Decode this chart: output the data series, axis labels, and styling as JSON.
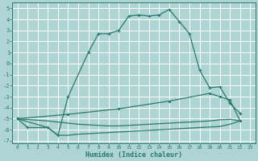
{
  "xlabel": "Humidex (Indice chaleur)",
  "bg_color": "#aed4d4",
  "grid_color": "#ffffff",
  "line_color": "#2a7a6a",
  "xlim": [
    -0.5,
    23.5
  ],
  "ylim": [
    -7.2,
    5.5
  ],
  "xticks": [
    0,
    1,
    2,
    3,
    4,
    5,
    6,
    7,
    8,
    9,
    10,
    11,
    12,
    13,
    14,
    15,
    16,
    17,
    18,
    19,
    20,
    21,
    22,
    23
  ],
  "yticks": [
    -7,
    -6,
    -5,
    -4,
    -3,
    -2,
    -1,
    0,
    1,
    2,
    3,
    4,
    5
  ],
  "curve1_x": [
    0,
    1,
    3,
    4,
    5,
    7,
    8,
    9,
    10,
    11,
    12,
    13,
    14,
    15,
    16,
    17,
    18,
    19,
    20,
    21,
    22
  ],
  "curve1_y": [
    -5.0,
    -5.8,
    -5.8,
    -6.5,
    -3.0,
    1.0,
    2.7,
    2.7,
    3.0,
    4.3,
    4.4,
    4.3,
    4.4,
    4.9,
    3.8,
    2.7,
    -0.6,
    -2.2,
    -2.1,
    -3.6,
    -4.5
  ],
  "curve2_x": [
    0,
    5,
    10,
    15,
    19,
    20,
    21,
    22
  ],
  "curve2_y": [
    -5.0,
    -4.6,
    -4.1,
    -3.4,
    -2.7,
    -3.0,
    -3.3,
    -5.2
  ],
  "curve3_x": [
    0,
    3,
    4,
    5,
    6,
    7,
    8,
    9,
    10,
    11,
    12,
    13,
    14,
    15,
    16,
    17,
    18,
    19,
    20,
    21,
    22
  ],
  "curve3_y": [
    -5.0,
    -5.2,
    -5.3,
    -5.4,
    -5.5,
    -5.55,
    -5.6,
    -5.65,
    -5.65,
    -5.6,
    -5.55,
    -5.5,
    -5.45,
    -5.4,
    -5.35,
    -5.3,
    -5.25,
    -5.2,
    -5.1,
    -5.05,
    -5.2
  ],
  "curve4_x": [
    0,
    3,
    4,
    5,
    6,
    7,
    8,
    9,
    10,
    11,
    12,
    13,
    14,
    15,
    16,
    17,
    18,
    19,
    20,
    21,
    22
  ],
  "curve4_y": [
    -5.0,
    -5.8,
    -6.5,
    -6.5,
    -6.4,
    -6.35,
    -6.3,
    -6.25,
    -6.2,
    -6.15,
    -6.1,
    -6.05,
    -6.0,
    -5.95,
    -5.9,
    -5.85,
    -5.8,
    -5.75,
    -5.7,
    -5.5,
    -5.2
  ]
}
